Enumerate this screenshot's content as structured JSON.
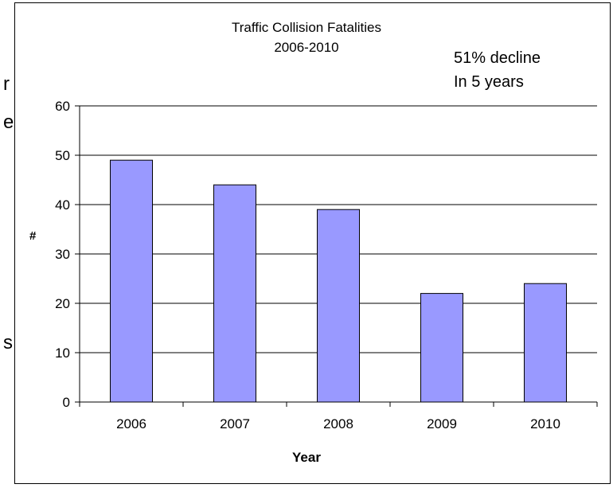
{
  "chart_data": {
    "type": "bar",
    "title": "Traffic Collision Fatalities",
    "subtitle": "2006-2010",
    "xlabel": "Year",
    "ylabel": "#",
    "categories": [
      "2006",
      "2007",
      "2008",
      "2009",
      "2010"
    ],
    "values": [
      49,
      44,
      39,
      22,
      24
    ],
    "ylim": [
      0,
      60
    ],
    "yticks": [
      0,
      10,
      20,
      30,
      40,
      50,
      60
    ],
    "grid": true,
    "legend": "none",
    "annotation": [
      "51% decline",
      "In 5 years"
    ],
    "bar_color": "#9999ff"
  },
  "edge_text": [
    "r",
    "e",
    "s"
  ]
}
